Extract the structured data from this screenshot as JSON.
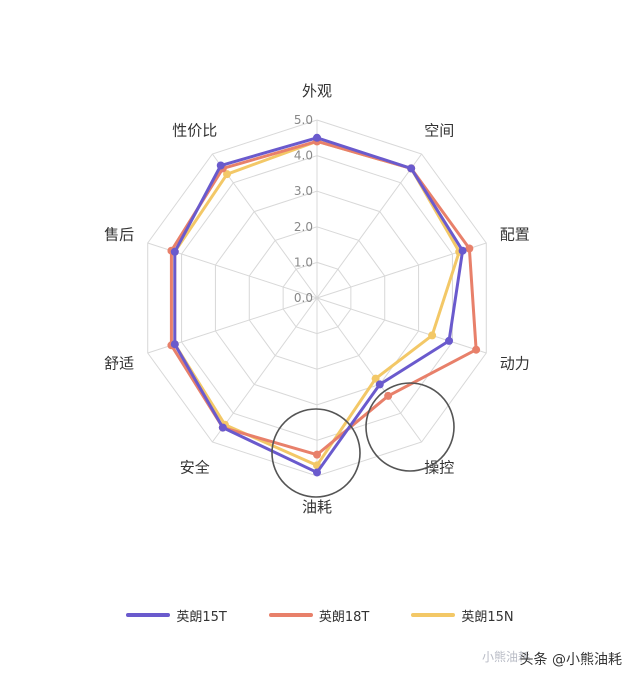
{
  "chart_data": {
    "type": "radar",
    "axes": [
      "外观",
      "空间",
      "配置",
      "动力",
      "操控",
      "油耗",
      "安全",
      "舒适",
      "售后",
      "性价比"
    ],
    "tick_labels": [
      "0.0",
      "1.0",
      "2.0",
      "3.0",
      "4.0",
      "5.0"
    ],
    "range": [
      0,
      5
    ],
    "grid": true,
    "legend_position": "bottom",
    "series": [
      {
        "name": "英朗15T",
        "color": "#6a5acd",
        "values": [
          4.5,
          4.5,
          4.3,
          3.9,
          3.0,
          4.9,
          4.5,
          4.2,
          4.2,
          4.6
        ]
      },
      {
        "name": "英朗18T",
        "color": "#e8806a",
        "values": [
          4.4,
          4.5,
          4.5,
          4.7,
          3.4,
          4.4,
          4.5,
          4.3,
          4.3,
          4.5
        ]
      },
      {
        "name": "英朗15N",
        "color": "#f3c867",
        "values": [
          4.4,
          4.5,
          4.2,
          3.4,
          2.8,
          4.7,
          4.4,
          4.2,
          4.2,
          4.3
        ]
      }
    ]
  },
  "watermark": {
    "text": "头条 @小熊油耗",
    "logo_text": "小熊油耗"
  }
}
